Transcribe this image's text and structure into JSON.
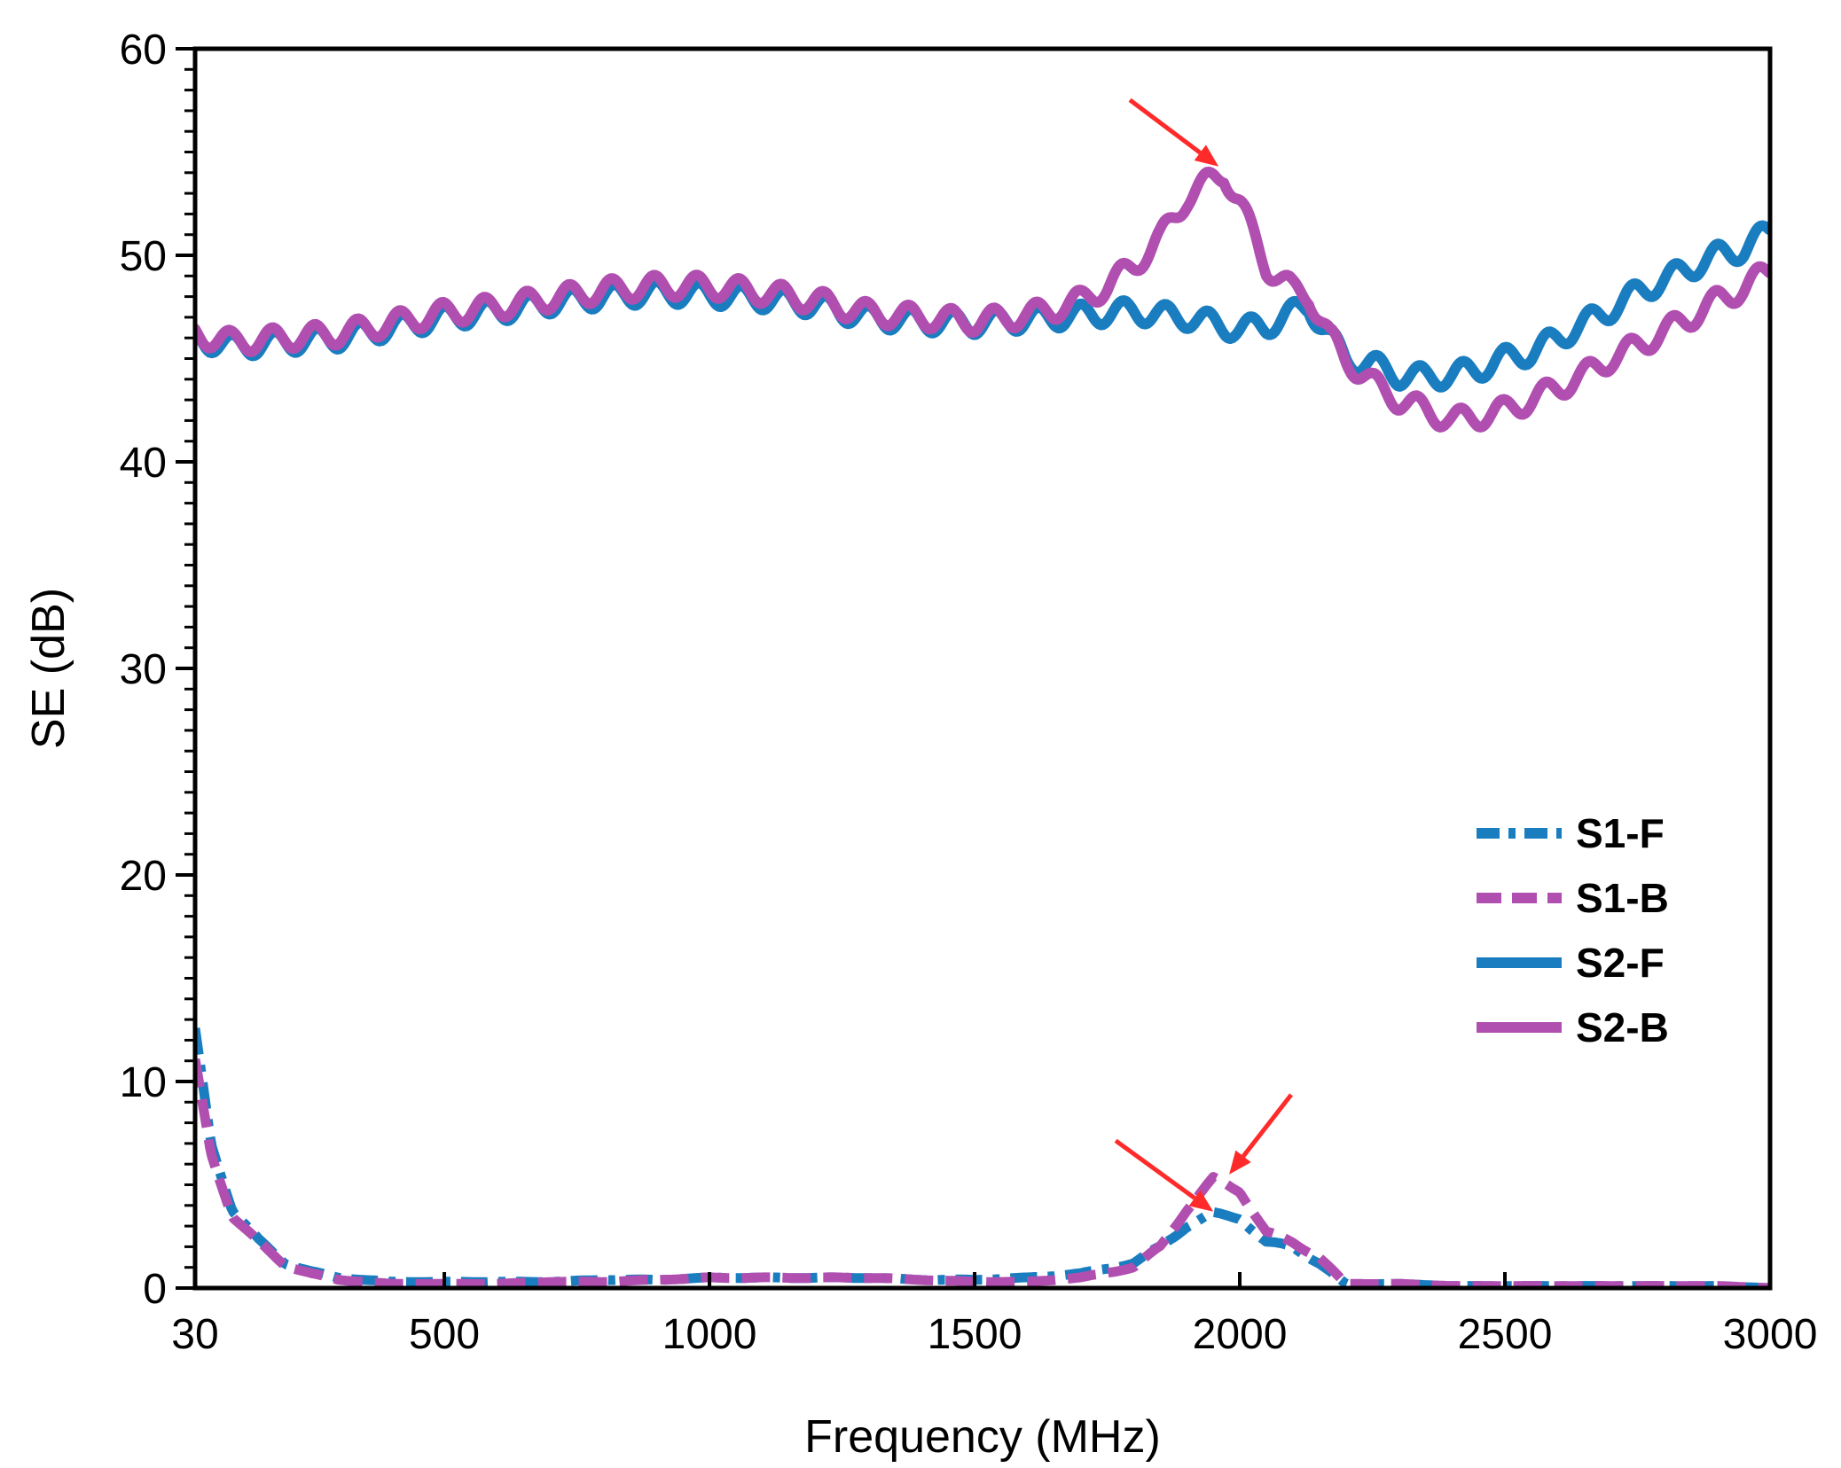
{
  "chart_data": {
    "type": "line",
    "title": "",
    "xlabel": "Frequency (MHz)",
    "ylabel": "SE (dB)",
    "xlim": [
      30,
      3000
    ],
    "ylim": [
      0,
      60
    ],
    "xticks": [
      30,
      500,
      1000,
      1500,
      2000,
      2500,
      3000
    ],
    "yticks": [
      0,
      10,
      20,
      30,
      40,
      50,
      60
    ],
    "grid": false,
    "legend_position": "center-right",
    "series": [
      {
        "name": "S1-F",
        "color": "#1a7dbf",
        "style": "dash-dot",
        "x": [
          30,
          60,
          100,
          150,
          200,
          250,
          300,
          400,
          500,
          600,
          700,
          800,
          900,
          1000,
          1100,
          1200,
          1300,
          1400,
          1500,
          1600,
          1700,
          1800,
          1850,
          1900,
          1950,
          2000,
          2050,
          2100,
          2150,
          2200,
          2300,
          2400,
          2500,
          2600,
          2700,
          2800,
          2900,
          3000
        ],
        "values": [
          12.5,
          7.0,
          3.8,
          2.3,
          1.2,
          0.8,
          0.5,
          0.3,
          0.3,
          0.3,
          0.3,
          0.4,
          0.4,
          0.5,
          0.5,
          0.5,
          0.5,
          0.4,
          0.4,
          0.5,
          0.7,
          1.2,
          2.0,
          3.0,
          3.6,
          3.4,
          2.2,
          2.0,
          1.2,
          0.2,
          0.2,
          0.1,
          0.1,
          0.1,
          0.1,
          0.1,
          0.1,
          0.0
        ]
      },
      {
        "name": "S1-B",
        "color": "#b04fb0",
        "style": "dashed",
        "x": [
          30,
          60,
          100,
          150,
          200,
          250,
          300,
          400,
          500,
          600,
          700,
          800,
          900,
          1000,
          1100,
          1200,
          1300,
          1400,
          1500,
          1600,
          1700,
          1800,
          1850,
          1900,
          1950,
          2000,
          2050,
          2100,
          2150,
          2200,
          2300,
          2400,
          2500,
          2600,
          2700,
          2800,
          2900,
          3000
        ],
        "values": [
          11.0,
          6.5,
          3.5,
          2.2,
          1.1,
          0.7,
          0.4,
          0.2,
          0.2,
          0.2,
          0.3,
          0.3,
          0.4,
          0.5,
          0.5,
          0.5,
          0.5,
          0.4,
          0.3,
          0.3,
          0.5,
          1.0,
          2.0,
          3.8,
          5.3,
          4.7,
          2.7,
          2.2,
          1.5,
          0.2,
          0.2,
          0.1,
          0.1,
          0.1,
          0.1,
          0.1,
          0.1,
          0.0
        ]
      },
      {
        "name": "S2-F",
        "color": "#1a7dbf",
        "style": "solid",
        "x": [
          30,
          100,
          200,
          300,
          400,
          500,
          600,
          700,
          800,
          900,
          1000,
          1100,
          1200,
          1300,
          1400,
          1500,
          1600,
          1700,
          1750,
          1800,
          1850,
          1900,
          1950,
          2000,
          2050,
          2100,
          2130,
          2170,
          2200,
          2250,
          2300,
          2350,
          2400,
          2450,
          2500,
          2550,
          2600,
          2650,
          2700,
          2750,
          2800,
          2850,
          2900,
          2950,
          3000
        ],
        "values": [
          46.0,
          45.6,
          45.8,
          46.0,
          46.5,
          47.0,
          47.3,
          47.7,
          48.0,
          48.2,
          48.1,
          47.9,
          47.6,
          47.0,
          46.8,
          46.7,
          46.9,
          47.1,
          47.2,
          47.3,
          47.1,
          47.0,
          46.7,
          46.4,
          46.6,
          47.2,
          47.6,
          46.0,
          45.0,
          44.7,
          44.2,
          44.1,
          44.2,
          44.5,
          45.0,
          45.3,
          46.0,
          46.7,
          47.4,
          48.2,
          48.8,
          49.4,
          50.0,
          50.3,
          51.2
        ]
      },
      {
        "name": "S2-B",
        "color": "#b04fb0",
        "style": "solid",
        "x": [
          30,
          100,
          200,
          300,
          400,
          500,
          600,
          700,
          800,
          900,
          1000,
          1100,
          1200,
          1300,
          1400,
          1500,
          1600,
          1650,
          1700,
          1750,
          1800,
          1850,
          1900,
          1950,
          1970,
          2000,
          2050,
          2100,
          2130,
          2170,
          2200,
          2250,
          2300,
          2350,
          2400,
          2450,
          2500,
          2550,
          2600,
          2650,
          2700,
          2750,
          2800,
          2850,
          2900,
          2950,
          3000
        ],
        "values": [
          46.2,
          45.8,
          46.0,
          46.2,
          46.7,
          47.2,
          47.5,
          47.9,
          48.3,
          48.5,
          48.5,
          48.2,
          47.8,
          47.2,
          47.0,
          46.8,
          47.1,
          47.4,
          47.8,
          48.5,
          49.5,
          50.8,
          52.8,
          53.7,
          54.0,
          52.5,
          49.5,
          48.3,
          48.1,
          46.0,
          45.0,
          43.8,
          43.0,
          42.5,
          42.0,
          42.2,
          42.5,
          43.0,
          43.6,
          44.2,
          45.0,
          45.6,
          46.3,
          47.0,
          47.8,
          48.4,
          49.3
        ]
      }
    ],
    "annotations": [
      {
        "type": "arrow",
        "color": "#ff2a2a",
        "target": [
          1960,
          54.3
        ],
        "description": "S2-B peak"
      },
      {
        "type": "arrow",
        "color": "#ff2a2a",
        "target": [
          1950,
          3.7
        ],
        "description": "S1-F peak"
      },
      {
        "type": "arrow",
        "color": "#ff2a2a",
        "target": [
          1980,
          5.5
        ],
        "description": "S1-B peak"
      }
    ]
  }
}
